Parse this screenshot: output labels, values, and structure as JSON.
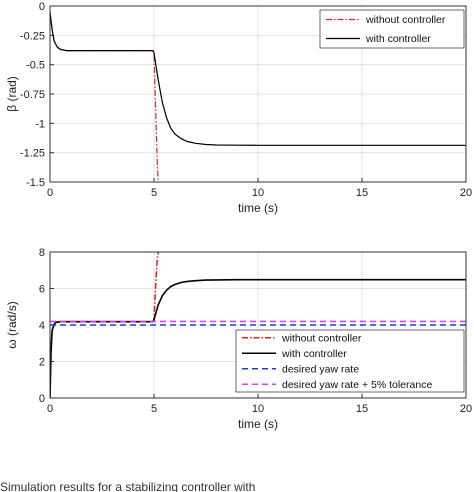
{
  "chart_data": [
    {
      "type": "line",
      "xlabel": "time (s)",
      "ylabel": "β (rad)",
      "xlim": [
        0,
        20
      ],
      "ylim": [
        -1.5,
        0
      ],
      "xticks": [
        "0",
        "5",
        "10",
        "15",
        "20"
      ],
      "yticks": [
        "0",
        "-0.25",
        "-0.5",
        "-0.75",
        "-1",
        "-1.25",
        "-1.5"
      ],
      "grid": true,
      "legend_position": "top-right",
      "series": [
        {
          "name": "without controller",
          "color": "#d62728",
          "style": "dash-dot",
          "x": [
            0,
            0.1,
            0.2,
            0.35,
            0.5,
            0.8,
            1.2,
            2,
            3,
            4,
            4.95,
            5.0,
            5.05,
            5.1,
            5.15,
            5.2
          ],
          "y": [
            -0.05,
            -0.2,
            -0.3,
            -0.35,
            -0.37,
            -0.38,
            -0.38,
            -0.38,
            -0.38,
            -0.38,
            -0.38,
            -0.4,
            -0.7,
            -1.0,
            -1.3,
            -1.5
          ]
        },
        {
          "name": "with controller",
          "color": "#000000",
          "style": "solid",
          "x": [
            0,
            0.1,
            0.2,
            0.35,
            0.5,
            0.8,
            1.2,
            2,
            3,
            4,
            4.95,
            5.0,
            5.2,
            5.4,
            5.6,
            5.8,
            6.0,
            6.3,
            6.6,
            7.0,
            7.5,
            8,
            9,
            10,
            15,
            20
          ],
          "y": [
            -0.05,
            -0.2,
            -0.3,
            -0.35,
            -0.37,
            -0.38,
            -0.38,
            -0.38,
            -0.38,
            -0.38,
            -0.38,
            -0.4,
            -0.63,
            -0.82,
            -0.95,
            -1.04,
            -1.09,
            -1.13,
            -1.155,
            -1.17,
            -1.18,
            -1.185,
            -1.186,
            -1.187,
            -1.187,
            -1.187
          ]
        }
      ]
    },
    {
      "type": "line",
      "xlabel": "time (s)",
      "ylabel": "ω (rad/s)",
      "xlim": [
        0,
        20
      ],
      "ylim": [
        0,
        8
      ],
      "xticks": [
        "0",
        "5",
        "10",
        "15",
        "20"
      ],
      "yticks": [
        "0",
        "2",
        "4",
        "6",
        "8"
      ],
      "grid": true,
      "legend_position": "bottom-right",
      "series": [
        {
          "name": "without controller",
          "color": "#d62728",
          "style": "dash-dot",
          "x": [
            0,
            0.05,
            0.1,
            0.2,
            0.3,
            0.5,
            1,
            2,
            3,
            4,
            4.95,
            5.0,
            5.05,
            5.1,
            5.15,
            5.2
          ],
          "y": [
            0,
            2.5,
            3.7,
            4.05,
            4.15,
            4.18,
            4.18,
            4.18,
            4.18,
            4.18,
            4.18,
            4.3,
            5.5,
            6.6,
            7.5,
            8.0
          ]
        },
        {
          "name": "with controller",
          "color": "#000000",
          "style": "solid",
          "x": [
            0,
            0.05,
            0.1,
            0.2,
            0.3,
            0.5,
            1,
            2,
            3,
            4,
            4.95,
            5.0,
            5.2,
            5.4,
            5.6,
            5.8,
            6.0,
            6.3,
            6.6,
            7.0,
            7.5,
            8,
            9,
            10,
            15,
            20
          ],
          "y": [
            0,
            2.5,
            3.7,
            4.05,
            4.15,
            4.18,
            4.18,
            4.18,
            4.18,
            4.18,
            4.18,
            4.3,
            5.1,
            5.6,
            5.9,
            6.1,
            6.22,
            6.33,
            6.39,
            6.43,
            6.46,
            6.47,
            6.48,
            6.48,
            6.48,
            6.48
          ]
        },
        {
          "name": "desired yaw rate",
          "color": "#1f3fbf",
          "style": "dashed",
          "x": [
            0,
            20
          ],
          "y": [
            4.0,
            4.0
          ]
        },
        {
          "name": "desired yaw rate + 5% tolerance",
          "color": "#e040e0",
          "style": "dashed",
          "x": [
            0,
            20
          ],
          "y": [
            4.2,
            4.2
          ]
        }
      ]
    }
  ],
  "caption": "Simulation results for a stabilizing controller with"
}
